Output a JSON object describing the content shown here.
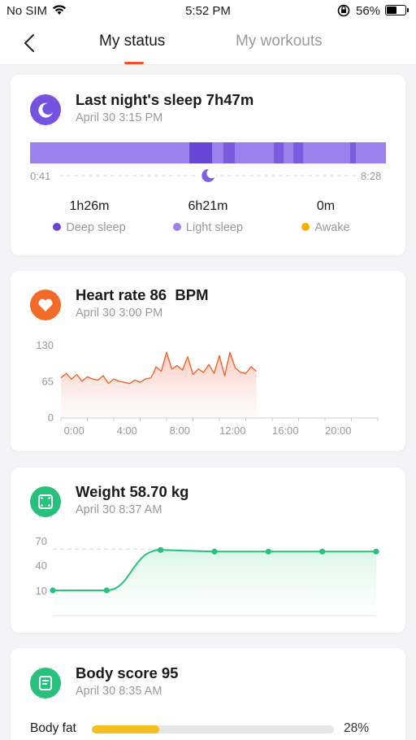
{
  "status_bar": {
    "carrier": "No SIM",
    "time": "5:52 PM",
    "battery": "56%",
    "battery_level": 0.56
  },
  "nav": {
    "tabs": [
      "My status",
      "My workouts"
    ],
    "active_tab": 0
  },
  "sleep": {
    "title": "Last night's sleep 7h47m",
    "subtitle": "April 30 3:15 PM",
    "start": "0:41",
    "end": "8:28",
    "stats": [
      {
        "value": "1h26m",
        "label": "Deep sleep",
        "color": "#6a46d6"
      },
      {
        "value": "6h21m",
        "label": "Light sleep",
        "color": "#9b80ee"
      },
      {
        "value": "0m",
        "label": "Awake",
        "color": "#f5b301"
      }
    ],
    "bar_color_light": "#9b80ee",
    "bar_color_deep": "#6a46d6"
  },
  "heart": {
    "title": "Heart rate 86  BPM",
    "subtitle": "April 30 3:00 PM",
    "color": "#f0642a",
    "icon_color": "#f26a28"
  },
  "weight": {
    "title": "Weight 58.70 kg",
    "subtitle": "April 30 8:37 AM",
    "color": "#27c07d"
  },
  "body": {
    "title": "Body score 95",
    "subtitle": "April 30 8:35 AM",
    "bodyfat_label": "Body fat",
    "bodyfat_value": "28%",
    "bodyfat_fraction": 0.28
  },
  "chart_data": [
    {
      "type": "line",
      "chart": "heart-rate",
      "x_ticks": [
        "0:00",
        "4:00",
        "8:00",
        "12:00",
        "16:00",
        "20:00"
      ],
      "y_ticks": [
        "130",
        "65",
        "0"
      ],
      "ylim": [
        0,
        130
      ],
      "series": [
        {
          "x": [
            0,
            0.4,
            0.8,
            1.2,
            1.6,
            2,
            2.4,
            2.8,
            3.2,
            3.6,
            4,
            4.4,
            4.8,
            5.2,
            5.6,
            6,
            6.4,
            6.8,
            7,
            7.2,
            7.6,
            8,
            8.4,
            8.8,
            9.2,
            9.6,
            10,
            10.4,
            10.8,
            11.2,
            11.6,
            12,
            12.4,
            12.8,
            13.2,
            13.6,
            14,
            14.4,
            14.8
          ],
          "y": [
            72,
            80,
            70,
            78,
            66,
            74,
            70,
            68,
            76,
            62,
            70,
            66,
            64,
            62,
            68,
            64,
            70,
            72,
            80,
            92,
            84,
            118,
            88,
            94,
            86,
            110,
            78,
            88,
            82,
            96,
            80,
            112,
            76,
            118,
            90,
            82,
            80,
            92,
            84
          ]
        }
      ]
    },
    {
      "type": "line",
      "chart": "weight",
      "y_ticks": [
        "70",
        "40",
        "10"
      ],
      "ylim": [
        0,
        70
      ],
      "series": [
        {
          "x": [
            0,
            1,
            2,
            3,
            4,
            5,
            6
          ],
          "y": [
            10,
            10,
            58.7,
            58.7,
            58.7,
            58.7,
            58.7
          ]
        }
      ]
    }
  ]
}
